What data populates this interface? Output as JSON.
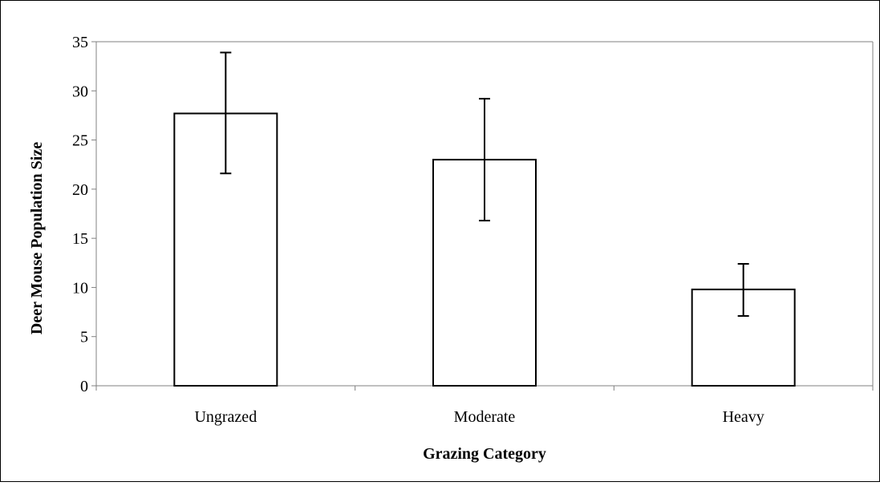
{
  "chart_data": {
    "type": "bar",
    "title": "",
    "xlabel": "Grazing Category",
    "ylabel": "Deer Mouse Population Size",
    "categories": [
      "Ungrazed",
      "Moderate",
      "Heavy"
    ],
    "values": [
      27.7,
      23.0,
      9.8
    ],
    "error_bars": [
      {
        "low": 21.6,
        "high": 33.9
      },
      {
        "low": 16.8,
        "high": 29.2
      },
      {
        "low": 7.1,
        "high": 12.4
      }
    ],
    "ylim": [
      0,
      35
    ],
    "yticks": [
      0,
      5,
      10,
      15,
      20,
      25,
      30,
      35
    ],
    "ytick_labels": [
      "0",
      "5",
      "10",
      "15",
      "20",
      "25",
      "30",
      "35"
    ],
    "grid": false,
    "legend": "none",
    "colors": {
      "bar_fill": "#ffffff",
      "bar_stroke": "#000000",
      "axis": "#808080",
      "frame": "#000000"
    }
  }
}
